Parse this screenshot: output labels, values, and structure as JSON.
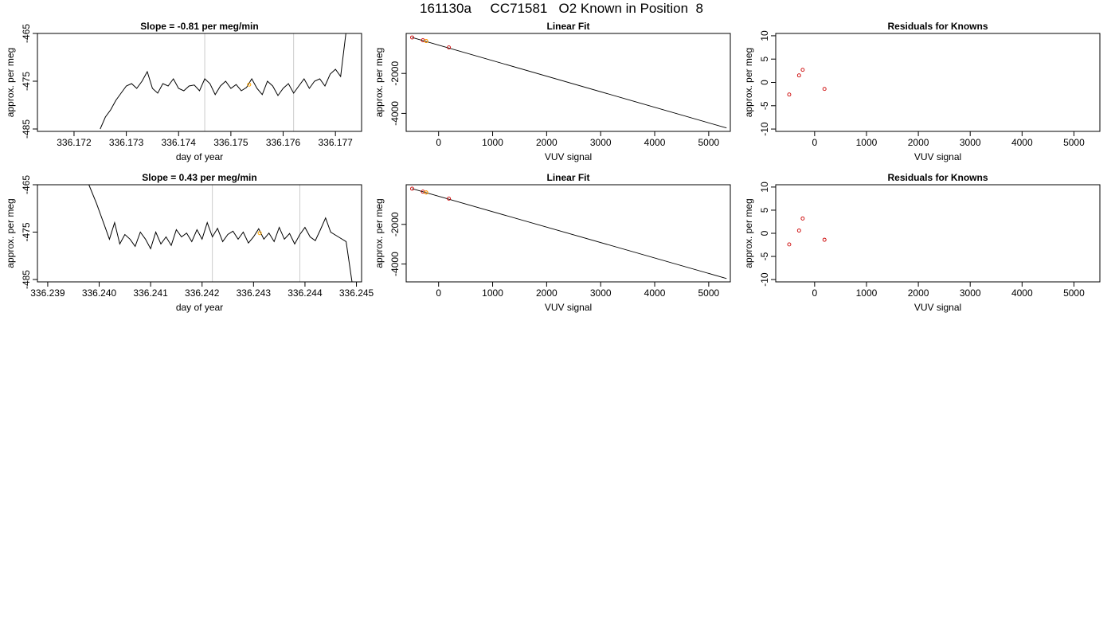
{
  "figure_title": "161130a     CC71581   O2 Known in Position  8",
  "colors": {
    "trace": "#000000",
    "marker": "#cc0000",
    "highlight": "#ffa500",
    "vline": "#cccccc"
  },
  "chart_data": [
    {
      "panel": "row1-trace",
      "type": "line",
      "title": "Slope =  -0.81  per meg/min",
      "xlabel": "day of year",
      "ylabel": "approx. per meg",
      "xlim": [
        336.1713,
        336.1775
      ],
      "ylim": [
        -485.5,
        -465
      ],
      "xticks": [
        "336.172",
        "336.173",
        "336.174",
        "336.175",
        "336.176",
        "336.177"
      ],
      "yticks": [
        "-465",
        "-475",
        "-485"
      ],
      "vlines": [
        336.1745,
        336.1762
      ],
      "series": [
        {
          "x": [
            336.1725,
            336.1726,
            336.1727,
            336.1728,
            336.1729,
            336.173,
            336.1731,
            336.1732,
            336.1733,
            336.1734,
            336.1735,
            336.1736,
            336.1737,
            336.1738,
            336.1739,
            336.174,
            336.1741,
            336.1742,
            336.1743,
            336.1744,
            336.1745,
            336.1746,
            336.1747,
            336.1748,
            336.1749,
            336.175,
            336.1751,
            336.1752,
            336.1753,
            336.1754,
            336.1755,
            336.1756,
            336.1757,
            336.1758,
            336.1759,
            336.176,
            336.1761,
            336.1762,
            336.1763,
            336.1764,
            336.1765,
            336.1766,
            336.1767,
            336.1768,
            336.1769,
            336.177,
            336.1771,
            336.1772
          ],
          "y": [
            -485,
            -482.5,
            -481,
            -479,
            -477.5,
            -476,
            -475.5,
            -476.5,
            -475,
            -473,
            -476.5,
            -477.5,
            -475.5,
            -476,
            -474.5,
            -476.5,
            -477,
            -476,
            -475.8,
            -477,
            -474.5,
            -475.5,
            -477.8,
            -476,
            -475,
            -476.5,
            -475.7,
            -477,
            -476.3,
            -474.5,
            -476.5,
            -477.8,
            -475,
            -476,
            -478,
            -476.5,
            -475.5,
            -477.5,
            -476,
            -474.5,
            -476.5,
            -475,
            -474.5,
            -476,
            -473.5,
            -472.5,
            -474,
            -465
          ]
        },
        {
          "x": [
            336.1714,
            336.1716,
            336.1718,
            336.172,
            336.1722,
            336.1724
          ],
          "y": [
            -486,
            -486,
            -486,
            -486,
            -486,
            -486
          ]
        }
      ],
      "highlight": {
        "x": 336.17535,
        "y": -475.7
      }
    },
    {
      "panel": "row1-fit",
      "type": "scatter",
      "title": "Linear Fit",
      "xlabel": "VUV signal",
      "ylabel": "approx. per meg",
      "xlim": [
        -600,
        5400
      ],
      "ylim": [
        -4900,
        0
      ],
      "xticks": [
        "0",
        "1000",
        "2000",
        "3000",
        "4000",
        "5000"
      ],
      "yticks": [
        "-2000",
        "-4000"
      ],
      "points": {
        "x": [
          -490,
          -290,
          -230,
          190
        ],
        "y": [
          -200,
          -340,
          -380,
          -700
        ]
      },
      "highlight": {
        "x": -230,
        "y": -380
      },
      "fit_line": {
        "x": [
          -490,
          5330
        ],
        "y": [
          -200,
          -4730
        ]
      }
    },
    {
      "panel": "row1-residuals",
      "type": "scatter",
      "title": "Residuals for Knowns",
      "xlabel": "VUV signal",
      "ylabel": "approx. per meg",
      "xlim": [
        -750,
        5500
      ],
      "ylim": [
        -10.5,
        10.5
      ],
      "xticks": [
        "0",
        "1000",
        "2000",
        "3000",
        "4000",
        "5000"
      ],
      "yticks": [
        "10",
        "5",
        "0",
        "-5",
        "-10"
      ],
      "points": {
        "x": [
          -490,
          -300,
          -230,
          190
        ],
        "y": [
          -2.6,
          1.5,
          2.7,
          -1.4
        ]
      }
    },
    {
      "panel": "row2-trace",
      "type": "line",
      "title": "Slope =  0.43  per meg/min",
      "xlabel": "day of year",
      "ylabel": "approx. per meg",
      "xlim": [
        336.2388,
        336.2451
      ],
      "ylim": [
        -485.5,
        -465
      ],
      "xticks": [
        "336.239",
        "336.240",
        "336.241",
        "336.242",
        "336.243",
        "336.244",
        "336.245"
      ],
      "yticks": [
        "-465",
        "-475",
        "-485"
      ],
      "vlines": [
        336.2422,
        336.2439
      ],
      "series": [
        {
          "x": [
            336.2398,
            336.23995,
            336.2401,
            336.2402,
            336.2403,
            336.2404,
            336.2405,
            336.2406,
            336.2407,
            336.2408,
            336.2409,
            336.241,
            336.2411,
            336.2412,
            336.2413,
            336.2414,
            336.2415,
            336.2416,
            336.2417,
            336.2418,
            336.2419,
            336.242,
            336.2421,
            336.2422,
            336.2423,
            336.2424,
            336.2425,
            336.2426,
            336.2427,
            336.2428,
            336.2429,
            336.243,
            336.2431,
            336.2432,
            336.2433,
            336.2434,
            336.2435,
            336.2436,
            336.2437,
            336.2438,
            336.2439,
            336.244,
            336.2441,
            336.2442,
            336.2443,
            336.2444,
            336.2445,
            336.24465,
            336.2448,
            336.24492
          ],
          "y": [
            -465,
            -469,
            -473.5,
            -476.5,
            -473,
            -477.5,
            -475.5,
            -476.5,
            -478,
            -475,
            -476.5,
            -478.5,
            -475,
            -477.5,
            -476,
            -477.8,
            -474.5,
            -476,
            -475.2,
            -477,
            -474.5,
            -476.5,
            -473,
            -476,
            -474.2,
            -477,
            -475.5,
            -474.8,
            -476.5,
            -475,
            -477.3,
            -476,
            -474.3,
            -476.5,
            -475.2,
            -477,
            -474,
            -476.5,
            -475.3,
            -477.5,
            -475.5,
            -474,
            -476,
            -476.8,
            -474.5,
            -472,
            -475,
            -476,
            -477,
            -486
          ]
        }
      ],
      "highlight": {
        "x": 336.24312,
        "y": -475.2
      }
    },
    {
      "panel": "row2-fit",
      "type": "scatter",
      "title": "Linear Fit",
      "xlabel": "VUV signal",
      "ylabel": "approx. per meg",
      "xlim": [
        -600,
        5400
      ],
      "ylim": [
        -4900,
        0
      ],
      "xticks": [
        "0",
        "1000",
        "2000",
        "3000",
        "4000",
        "5000"
      ],
      "yticks": [
        "-2000",
        "-4000"
      ],
      "points": {
        "x": [
          -490,
          -290,
          -230,
          190
        ],
        "y": [
          -200,
          -350,
          -390,
          -700
        ]
      },
      "highlight": {
        "x": -230,
        "y": -390
      },
      "fit_line": {
        "x": [
          -490,
          5330
        ],
        "y": [
          -200,
          -4730
        ]
      }
    },
    {
      "panel": "row2-residuals",
      "type": "scatter",
      "title": "Residuals for Knowns",
      "xlabel": "VUV signal",
      "ylabel": "approx. per meg",
      "xlim": [
        -750,
        5500
      ],
      "ylim": [
        -10.5,
        10.5
      ],
      "xticks": [
        "0",
        "1000",
        "2000",
        "3000",
        "4000",
        "5000"
      ],
      "yticks": [
        "10",
        "5",
        "0",
        "-5",
        "-10"
      ],
      "points": {
        "x": [
          -490,
          -300,
          -230,
          190
        ],
        "y": [
          -2.4,
          0.6,
          3.2,
          -1.4
        ]
      }
    }
  ]
}
